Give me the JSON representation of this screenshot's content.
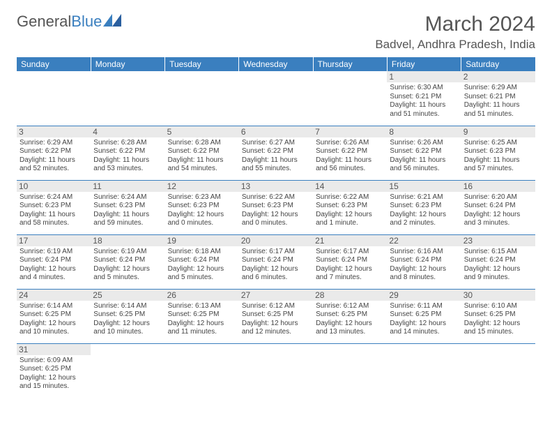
{
  "brand": {
    "part1": "General",
    "part2": "Blue"
  },
  "title": "March 2024",
  "location": "Badvel, Andhra Pradesh, India",
  "colors": {
    "header_bg": "#3a7fbf",
    "header_text": "#ffffff",
    "daynum_bg": "#eaeaea",
    "border": "#3a7fbf",
    "text": "#444444",
    "background": "#ffffff"
  },
  "dayHeaders": [
    "Sunday",
    "Monday",
    "Tuesday",
    "Wednesday",
    "Thursday",
    "Friday",
    "Saturday"
  ],
  "weeks": [
    [
      null,
      null,
      null,
      null,
      null,
      {
        "n": "1",
        "sr": "Sunrise: 6:30 AM",
        "ss": "Sunset: 6:21 PM",
        "d1": "Daylight: 11 hours",
        "d2": "and 51 minutes."
      },
      {
        "n": "2",
        "sr": "Sunrise: 6:29 AM",
        "ss": "Sunset: 6:21 PM",
        "d1": "Daylight: 11 hours",
        "d2": "and 51 minutes."
      }
    ],
    [
      {
        "n": "3",
        "sr": "Sunrise: 6:29 AM",
        "ss": "Sunset: 6:22 PM",
        "d1": "Daylight: 11 hours",
        "d2": "and 52 minutes."
      },
      {
        "n": "4",
        "sr": "Sunrise: 6:28 AM",
        "ss": "Sunset: 6:22 PM",
        "d1": "Daylight: 11 hours",
        "d2": "and 53 minutes."
      },
      {
        "n": "5",
        "sr": "Sunrise: 6:28 AM",
        "ss": "Sunset: 6:22 PM",
        "d1": "Daylight: 11 hours",
        "d2": "and 54 minutes."
      },
      {
        "n": "6",
        "sr": "Sunrise: 6:27 AM",
        "ss": "Sunset: 6:22 PM",
        "d1": "Daylight: 11 hours",
        "d2": "and 55 minutes."
      },
      {
        "n": "7",
        "sr": "Sunrise: 6:26 AM",
        "ss": "Sunset: 6:22 PM",
        "d1": "Daylight: 11 hours",
        "d2": "and 56 minutes."
      },
      {
        "n": "8",
        "sr": "Sunrise: 6:26 AM",
        "ss": "Sunset: 6:22 PM",
        "d1": "Daylight: 11 hours",
        "d2": "and 56 minutes."
      },
      {
        "n": "9",
        "sr": "Sunrise: 6:25 AM",
        "ss": "Sunset: 6:23 PM",
        "d1": "Daylight: 11 hours",
        "d2": "and 57 minutes."
      }
    ],
    [
      {
        "n": "10",
        "sr": "Sunrise: 6:24 AM",
        "ss": "Sunset: 6:23 PM",
        "d1": "Daylight: 11 hours",
        "d2": "and 58 minutes."
      },
      {
        "n": "11",
        "sr": "Sunrise: 6:24 AM",
        "ss": "Sunset: 6:23 PM",
        "d1": "Daylight: 11 hours",
        "d2": "and 59 minutes."
      },
      {
        "n": "12",
        "sr": "Sunrise: 6:23 AM",
        "ss": "Sunset: 6:23 PM",
        "d1": "Daylight: 12 hours",
        "d2": "and 0 minutes."
      },
      {
        "n": "13",
        "sr": "Sunrise: 6:22 AM",
        "ss": "Sunset: 6:23 PM",
        "d1": "Daylight: 12 hours",
        "d2": "and 0 minutes."
      },
      {
        "n": "14",
        "sr": "Sunrise: 6:22 AM",
        "ss": "Sunset: 6:23 PM",
        "d1": "Daylight: 12 hours",
        "d2": "and 1 minute."
      },
      {
        "n": "15",
        "sr": "Sunrise: 6:21 AM",
        "ss": "Sunset: 6:23 PM",
        "d1": "Daylight: 12 hours",
        "d2": "and 2 minutes."
      },
      {
        "n": "16",
        "sr": "Sunrise: 6:20 AM",
        "ss": "Sunset: 6:24 PM",
        "d1": "Daylight: 12 hours",
        "d2": "and 3 minutes."
      }
    ],
    [
      {
        "n": "17",
        "sr": "Sunrise: 6:19 AM",
        "ss": "Sunset: 6:24 PM",
        "d1": "Daylight: 12 hours",
        "d2": "and 4 minutes."
      },
      {
        "n": "18",
        "sr": "Sunrise: 6:19 AM",
        "ss": "Sunset: 6:24 PM",
        "d1": "Daylight: 12 hours",
        "d2": "and 5 minutes."
      },
      {
        "n": "19",
        "sr": "Sunrise: 6:18 AM",
        "ss": "Sunset: 6:24 PM",
        "d1": "Daylight: 12 hours",
        "d2": "and 5 minutes."
      },
      {
        "n": "20",
        "sr": "Sunrise: 6:17 AM",
        "ss": "Sunset: 6:24 PM",
        "d1": "Daylight: 12 hours",
        "d2": "and 6 minutes."
      },
      {
        "n": "21",
        "sr": "Sunrise: 6:17 AM",
        "ss": "Sunset: 6:24 PM",
        "d1": "Daylight: 12 hours",
        "d2": "and 7 minutes."
      },
      {
        "n": "22",
        "sr": "Sunrise: 6:16 AM",
        "ss": "Sunset: 6:24 PM",
        "d1": "Daylight: 12 hours",
        "d2": "and 8 minutes."
      },
      {
        "n": "23",
        "sr": "Sunrise: 6:15 AM",
        "ss": "Sunset: 6:24 PM",
        "d1": "Daylight: 12 hours",
        "d2": "and 9 minutes."
      }
    ],
    [
      {
        "n": "24",
        "sr": "Sunrise: 6:14 AM",
        "ss": "Sunset: 6:25 PM",
        "d1": "Daylight: 12 hours",
        "d2": "and 10 minutes."
      },
      {
        "n": "25",
        "sr": "Sunrise: 6:14 AM",
        "ss": "Sunset: 6:25 PM",
        "d1": "Daylight: 12 hours",
        "d2": "and 10 minutes."
      },
      {
        "n": "26",
        "sr": "Sunrise: 6:13 AM",
        "ss": "Sunset: 6:25 PM",
        "d1": "Daylight: 12 hours",
        "d2": "and 11 minutes."
      },
      {
        "n": "27",
        "sr": "Sunrise: 6:12 AM",
        "ss": "Sunset: 6:25 PM",
        "d1": "Daylight: 12 hours",
        "d2": "and 12 minutes."
      },
      {
        "n": "28",
        "sr": "Sunrise: 6:12 AM",
        "ss": "Sunset: 6:25 PM",
        "d1": "Daylight: 12 hours",
        "d2": "and 13 minutes."
      },
      {
        "n": "29",
        "sr": "Sunrise: 6:11 AM",
        "ss": "Sunset: 6:25 PM",
        "d1": "Daylight: 12 hours",
        "d2": "and 14 minutes."
      },
      {
        "n": "30",
        "sr": "Sunrise: 6:10 AM",
        "ss": "Sunset: 6:25 PM",
        "d1": "Daylight: 12 hours",
        "d2": "and 15 minutes."
      }
    ],
    [
      {
        "n": "31",
        "sr": "Sunrise: 6:09 AM",
        "ss": "Sunset: 6:25 PM",
        "d1": "Daylight: 12 hours",
        "d2": "and 15 minutes."
      },
      null,
      null,
      null,
      null,
      null,
      null
    ]
  ]
}
